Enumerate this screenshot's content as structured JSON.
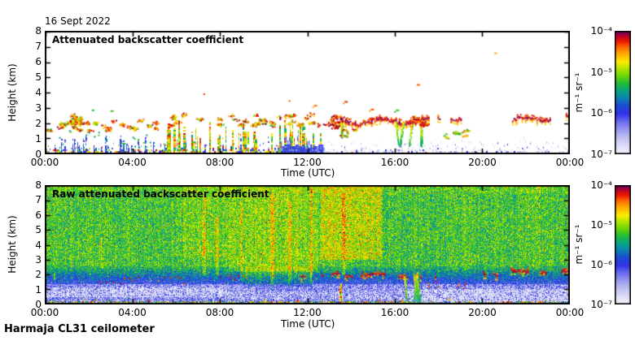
{
  "figure": {
    "date_title": "16 Sept 2022",
    "footer": "Harmaja CL31 ceilometer",
    "background": "#ffffff"
  },
  "colormap": {
    "stops": [
      [
        0.0,
        "#f4f4fd"
      ],
      [
        0.06,
        "#e2e2f8"
      ],
      [
        0.13,
        "#c3c3f1"
      ],
      [
        0.2,
        "#9a9aee"
      ],
      [
        0.27,
        "#6868ee"
      ],
      [
        0.33,
        "#3333e8"
      ],
      [
        0.4,
        "#1b4ed2"
      ],
      [
        0.46,
        "#0b84b0"
      ],
      [
        0.52,
        "#0aa680"
      ],
      [
        0.58,
        "#24bd34"
      ],
      [
        0.64,
        "#6fd607"
      ],
      [
        0.7,
        "#b5e600"
      ],
      [
        0.75,
        "#ffec00"
      ],
      [
        0.81,
        "#ffb400"
      ],
      [
        0.87,
        "#ff6a00"
      ],
      [
        0.92,
        "#ec1500"
      ],
      [
        0.96,
        "#b9042e"
      ],
      [
        1.0,
        "#5f005f"
      ]
    ]
  },
  "palettes": {
    "surface": [
      [
        0.5,
        0.28,
        0.42
      ],
      [
        0.14,
        0.16,
        0.26
      ],
      [
        0.09,
        0.5,
        0.62
      ],
      [
        0.09,
        0.64,
        0.74
      ],
      [
        0.09,
        0.76,
        0.86
      ],
      [
        0.09,
        0.88,
        0.97
      ]
    ],
    "surface_edge": [
      [
        0.25,
        0.3,
        0.42
      ],
      [
        0.2,
        0.5,
        0.64
      ],
      [
        0.2,
        0.7,
        0.82
      ],
      [
        0.2,
        0.84,
        0.95
      ],
      [
        0.15,
        0.05,
        0.2
      ]
    ],
    "lavender": [
      [
        0.62,
        0.03,
        0.12
      ],
      [
        0.25,
        0.13,
        0.26
      ],
      [
        0.13,
        0.27,
        0.4
      ]
    ],
    "warm": [
      [
        0.28,
        0.8,
        0.9
      ],
      [
        0.27,
        0.9,
        0.99
      ],
      [
        0.25,
        0.72,
        0.82
      ],
      [
        0.12,
        0.62,
        0.72
      ],
      [
        0.08,
        0.52,
        0.62
      ]
    ],
    "cloud": [
      [
        0.42,
        0.92,
        1.0
      ],
      [
        0.34,
        0.83,
        0.92
      ],
      [
        0.24,
        0.75,
        0.86
      ]
    ],
    "virga": [
      [
        0.36,
        0.54,
        0.66
      ],
      [
        0.34,
        0.66,
        0.78
      ],
      [
        0.3,
        0.76,
        0.88
      ]
    ],
    "blue": [
      [
        0.8,
        0.3,
        0.42
      ],
      [
        0.2,
        0.42,
        0.5
      ]
    ],
    "column": [
      [
        0.34,
        0.8,
        0.93
      ],
      [
        0.26,
        0.7,
        0.81
      ],
      [
        0.2,
        0.6,
        0.71
      ],
      [
        0.2,
        0.49,
        0.62
      ]
    ],
    "block": [
      [
        0.75,
        0.3,
        0.4
      ],
      [
        0.25,
        0.2,
        0.3
      ]
    ]
  },
  "chart_data": [
    {
      "type": "heatmap",
      "title": "Attenuated backscatter coefficient",
      "xlabel": "Time (UTC)",
      "ylabel": "Height (km)",
      "x_ticks": [
        "00:00",
        "04:00",
        "08:00",
        "12:00",
        "16:00",
        "20:00",
        "00:00"
      ],
      "x_tick_hours": [
        0,
        4,
        8,
        12,
        16,
        20,
        24
      ],
      "x_range_hours": [
        0,
        24
      ],
      "y_ticks": [
        0,
        1,
        2,
        3,
        4,
        5,
        6,
        7,
        8
      ],
      "y_range_km": [
        0,
        8
      ],
      "background": "#ffffff",
      "grid": false,
      "colorbar": {
        "labels": [
          "10⁻⁴",
          "10⁻⁵",
          "10⁻⁶",
          "10⁻⁷"
        ],
        "unit": "m⁻¹ sr⁻¹",
        "scale": "log",
        "range_m1sr1": [
          1e-07,
          0.0001
        ],
        "position": "right"
      },
      "description": "Processed backscatter: dense aerosol layer 0-0.4 km all day; scattered aerosol/cloud patches near 2 km 00-06 UTC; precipitation/fog columns to ~2.2 km 05:30-12:40; strong cloud layer at ~2-2.5 km 13-17:30, 18-19:30 and 21:30-24 with virga; light residual layer below 0.5 km after 12 UTC.",
      "seed": 11,
      "features": [
        {
          "kind": "surface",
          "t": [
            0,
            10.8
          ],
          "h_base": 0.34,
          "h_var": 0.18,
          "spike_p": 0.1,
          "spike_h": [
            0.55,
            1.3
          ],
          "fade": 0.45,
          "hot_base": 0.4,
          "pal": "surface",
          "fleck_p": 0.3
        },
        {
          "kind": "spikes",
          "t": [
            0.1,
            5.6
          ],
          "count": 26,
          "h": [
            0.5,
            1.3
          ],
          "pal": "blue"
        },
        {
          "kind": "blobs",
          "t": [
            0.05,
            5.5
          ],
          "h": [
            1.6,
            2.25
          ],
          "count": 24,
          "r": 2.0,
          "pal": "warm"
        },
        {
          "kind": "blobs",
          "t": [
            0.85,
            1.6
          ],
          "h": [
            2.0,
            2.6
          ],
          "count": 9,
          "r": 2.6,
          "pal": "warm"
        },
        {
          "kind": "dots_rand",
          "t": [
            0.2,
            6.0
          ],
          "h": [
            0.5,
            1.6
          ],
          "count": 22,
          "ct": [
            0.45,
            0.65
          ]
        },
        {
          "kind": "columns",
          "t": [
            5.4,
            12.7
          ],
          "count": 46,
          "h_top": [
            1.0,
            2.25
          ],
          "rise": 0.0,
          "pal": "column"
        },
        {
          "kind": "blobs",
          "t": [
            5.4,
            12.8
          ],
          "h": [
            1.9,
            2.6
          ],
          "count": 30,
          "r": 2.2,
          "pal": "warm"
        },
        {
          "kind": "block",
          "t": [
            10.8,
            12.7
          ],
          "h_top": 0.62,
          "pal": "block"
        },
        {
          "kind": "surface",
          "t": [
            12.7,
            24
          ],
          "h_base": 0.36,
          "h_var": 0.12,
          "spike_p": 0.06,
          "spike_h": [
            0.45,
            0.75
          ],
          "fade": 0.75,
          "hot_base": 0.0,
          "pal": "lavender",
          "fleck_p": 0.5
        },
        {
          "kind": "cloud_line",
          "t": [
            12.9,
            17.55
          ],
          "h": 2.15,
          "amp": 0.18,
          "thick": 3.4,
          "gap_p": 0.5
        },
        {
          "kind": "blobs",
          "t": [
            12.85,
            13.6
          ],
          "h": [
            1.7,
            2.5
          ],
          "count": 10,
          "r": 2.6,
          "pal": "cloud"
        },
        {
          "kind": "virga",
          "t": [
            13.25,
            13.6
          ],
          "h_top": 1.9,
          "h_bot": 1.0,
          "count": 2
        },
        {
          "kind": "virga",
          "t": [
            15.95,
            17.2
          ],
          "h_top": 2.05,
          "h_bot": 0.35,
          "count": 6
        },
        {
          "kind": "blobs",
          "t": [
            16.6,
            17.4
          ],
          "h": [
            1.8,
            2.5
          ],
          "count": 8,
          "r": 2.6,
          "pal": "cloud"
        },
        {
          "kind": "cloud_line",
          "t": [
            17.95,
            19.5
          ],
          "h": 2.3,
          "amp": 0.08,
          "thick": 2.4,
          "gap_p": 1.2
        },
        {
          "kind": "cloud_line",
          "t": [
            21.35,
            24.05
          ],
          "h": 2.25,
          "amp": 0.12,
          "thick": 2.8,
          "gap_p": 0.35,
          "slope": 0.06
        },
        {
          "kind": "blobs",
          "t": [
            13.4,
            14.2
          ],
          "h": [
            1.2,
            1.7
          ],
          "count": 5,
          "r": 1.6,
          "pal": "warm"
        },
        {
          "kind": "blobs",
          "t": [
            17.9,
            19.3
          ],
          "h": [
            0.9,
            1.6
          ],
          "count": 6,
          "r": 1.7,
          "pal": "virga"
        },
        {
          "kind": "dots_rand",
          "t": [
            13,
            20
          ],
          "h": [
            0.05,
            0.18
          ],
          "count": 12,
          "ct": [
            0.8,
            0.95
          ]
        },
        {
          "kind": "dots",
          "pts": [
            [
              7.25,
              3.95,
              0.9
            ],
            [
              11.15,
              3.5,
              0.88
            ],
            [
              13.7,
              3.45,
              0.9
            ],
            [
              2.15,
              2.9,
              0.58
            ],
            [
              20.55,
              6.6,
              0.82
            ],
            [
              3.0,
              2.85,
              0.6
            ],
            [
              14.9,
              2.95,
              0.88
            ],
            [
              16.05,
              2.9,
              0.6
            ],
            [
              12.3,
              3.2,
              0.86
            ],
            [
              18.3,
              1.35,
              0.62
            ],
            [
              19.1,
              1.5,
              0.88
            ],
            [
              17.0,
              4.55,
              0.88
            ]
          ]
        }
      ]
    },
    {
      "type": "heatmap",
      "title": "Raw attenuated backscatter coefficient",
      "xlabel": "Time (UTC)",
      "ylabel": "Height (km)",
      "x_ticks": [
        "00:00",
        "04:00",
        "08:00",
        "12:00",
        "16:00",
        "20:00",
        "00:00"
      ],
      "x_tick_hours": [
        0,
        4,
        8,
        12,
        16,
        20,
        24
      ],
      "x_range_hours": [
        0,
        24
      ],
      "y_ticks": [
        0,
        1,
        2,
        3,
        4,
        5,
        6,
        7,
        8
      ],
      "y_range_km": [
        0,
        8
      ],
      "background": "#ffffff",
      "grid": false,
      "colorbar": {
        "labels": [
          "10⁻⁴",
          "10⁻⁵",
          "10⁻⁶",
          "10⁻⁷"
        ],
        "unit": "m⁻¹ sr⁻¹",
        "scale": "log",
        "range_m1sr1": [
          1e-07,
          0.0001
        ],
        "position": "right"
      },
      "description": "Raw signal: green/yellow shot noise aloft, enhanced (orange/red) 08:30-15:30 above 3 km; blue/lavender noise below ~2.5 km with whitish band near 0.5-1.1 km; dark-red cloud return line near 2 km from ~12 UTC onward; colorful surface echo at 0 km; green precipitation columns near 16:30-17:15.",
      "seed": 29,
      "noise": {
        "seed": 97,
        "col_var": 0.07,
        "outlier_p": 0.04,
        "layers": [
          {
            "h": [
              2.6,
              8.01
            ],
            "v": 0.6,
            "var": 0.13
          },
          {
            "h": [
              1.4,
              2.6
            ],
            "v": 0.33,
            "v_top": 0.58,
            "var": 0.12
          },
          {
            "h": [
              0.25,
              1.4
            ],
            "v": 0.21,
            "var": 0.16
          },
          {
            "h": [
              0,
              0.25
            ],
            "v": 0.5,
            "var": 0.45
          }
        ],
        "boosts": [
          {
            "t": [
              8.4,
              12.5
            ],
            "h": [
              2.2,
              8.01
            ],
            "dv": 0.06
          },
          {
            "t": [
              12.6,
              15.4
            ],
            "h": [
              3.0,
              8.01
            ],
            "dv": 0.12
          },
          {
            "t": [
              6.3,
              8.4
            ],
            "h": [
              3.2,
              8.01
            ],
            "dv": 0.04
          },
          {
            "t": [
              9.0,
              12.2
            ],
            "h": [
              1.2,
              2.6
            ],
            "dv": 0.09
          },
          {
            "t": [
              0,
              24
            ],
            "h": [
              7.5,
              8.01
            ],
            "dv": 0.03
          },
          {
            "t": [
              7.2,
              7.36
            ],
            "h": [
              2.0,
              7.5
            ],
            "dv": 0.12
          },
          {
            "t": [
              7.8,
              7.96
            ],
            "h": [
              2.0,
              6.0
            ],
            "dv": 0.1
          },
          {
            "t": [
              10.3,
              10.46
            ],
            "h": [
              1.0,
              7.5
            ],
            "dv": 0.12
          },
          {
            "t": [
              11.1,
              11.26
            ],
            "h": [
              1.2,
              7.0
            ],
            "dv": 0.1
          },
          {
            "t": [
              13.55,
              13.72
            ],
            "h": [
              2.0,
              7.5
            ],
            "dv": 0.12
          },
          {
            "t": [
              12.1,
              12.24
            ],
            "h": [
              1.0,
              7.8
            ],
            "dv": 0.11
          },
          {
            "t": [
              8.9,
              9.04
            ],
            "h": [
              1.5,
              7.0
            ],
            "dv": 0.1
          }
        ],
        "white_bands": [
          {
            "t": [
              0,
              8.3
            ],
            "h": [
              0.5,
              1.15
            ],
            "p": 0.5
          },
          {
            "t": [
              16.6,
              24
            ],
            "h": [
              0.2,
              1.05
            ],
            "p": 0.55
          },
          {
            "t": [
              8.3,
              16.6
            ],
            "h": [
              0.35,
              0.9
            ],
            "p": 0.3
          }
        ]
      },
      "features": [
        {
          "kind": "cloud_line",
          "t": [
            11.7,
            16.95
          ],
          "h": 2.0,
          "amp": 0.1,
          "thick": 2.2,
          "gap_p": 2.0
        },
        {
          "kind": "cloud_line",
          "t": [
            17.15,
            18.6
          ],
          "h": 1.8,
          "amp": 0.06,
          "thick": 1.8,
          "gap_p": 4.0
        },
        {
          "kind": "cloud_line",
          "t": [
            19.3,
            20.7
          ],
          "h": 2.05,
          "amp": 0.05,
          "thick": 2.0,
          "gap_p": 2.5
        },
        {
          "kind": "cloud_line",
          "t": [
            21.3,
            24.05
          ],
          "h": 2.2,
          "amp": 0.08,
          "thick": 2.4,
          "gap_p": 1.2
        },
        {
          "kind": "dots_rand",
          "t": [
            2.0,
            6.5
          ],
          "h": [
            1.4,
            1.9
          ],
          "count": 14,
          "ct": [
            0.86,
            0.97
          ]
        },
        {
          "kind": "dots_rand",
          "t": [
            8.0,
            11.0
          ],
          "h": [
            1.7,
            2.05
          ],
          "count": 8,
          "ct": [
            0.86,
            0.97
          ]
        },
        {
          "kind": "dots_rand",
          "t": [
            17.5,
            19.5
          ],
          "h": [
            1.1,
            1.6
          ],
          "count": 8,
          "ct": [
            0.86,
            0.96
          ]
        },
        {
          "kind": "virga",
          "t": [
            16.4,
            17.2
          ],
          "h_top": 2.15,
          "h_bot": 0.05,
          "count": 5
        },
        {
          "kind": "columns",
          "t": [
            13.3,
            14.05
          ],
          "count": 3,
          "h_top": [
            1.1,
            1.6
          ],
          "rise": 0.15,
          "pal": "column"
        },
        {
          "kind": "vline",
          "lines": [
            [
              2.55,
              2.5,
              4.5,
              0.74
            ],
            [
              0.4,
              1.6,
              2.1,
              0.66
            ]
          ]
        },
        {
          "kind": "surface",
          "t": [
            0,
            24
          ],
          "h_base": 0.16,
          "h_var": 0.08,
          "spike_p": 0.06,
          "spike_h": [
            0.25,
            0.5
          ],
          "fade": 0.3,
          "hot_base": 0.35,
          "pal": "surface_edge",
          "fleck_p": 0
        }
      ]
    }
  ]
}
